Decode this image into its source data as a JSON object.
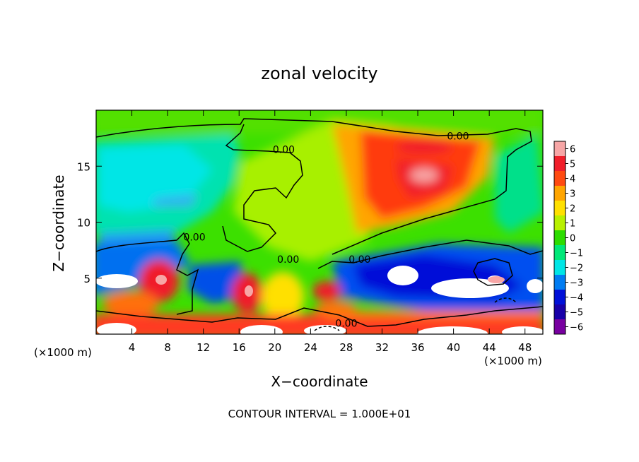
{
  "chart_data": {
    "type": "heatmap",
    "title": "zonal velocity",
    "xlabel": "X−coordinate",
    "ylabel": "Z−coordinate",
    "x_unit_left": "(×1000 m)",
    "x_unit_right": "(×1000 m)",
    "xlim": [
      0,
      50
    ],
    "ylim": [
      0,
      20
    ],
    "x_ticks": [
      4,
      8,
      12,
      16,
      20,
      24,
      28,
      32,
      36,
      40,
      44,
      48
    ],
    "y_ticks": [
      5,
      10,
      15
    ],
    "colorbar": {
      "ticks": [
        6,
        5,
        4,
        3,
        2,
        1,
        0,
        -1,
        -2,
        -3,
        -4,
        -5,
        -6
      ],
      "tick_labels": [
        "6",
        "5",
        "4",
        "3",
        "2",
        "1",
        "0",
        "−1",
        "−2",
        "−3",
        "−4",
        "−5",
        "−6"
      ],
      "colors": [
        "#f7a6a6",
        "#f01e2a",
        "#ff4a10",
        "#ffa500",
        "#ffe000",
        "#b8f000",
        "#2cdc00",
        "#00e878",
        "#00e6e6",
        "#007cf2",
        "#0010d8",
        "#1800a8",
        "#7800a0"
      ]
    },
    "contour_labels": [
      {
        "text": "0.00",
        "x": 40.5,
        "y": 17.5
      },
      {
        "text": "0.00",
        "x": 21.0,
        "y": 16.3
      },
      {
        "text": "0.00",
        "x": 11.0,
        "y": 8.5
      },
      {
        "text": "0.00",
        "x": 21.5,
        "y": 6.5
      },
      {
        "text": "0.00",
        "x": 29.5,
        "y": 6.5
      },
      {
        "text": "0.00",
        "x": 28.0,
        "y": 0.8
      }
    ],
    "footer": "CONTOUR INTERVAL = 1.000E+01"
  }
}
